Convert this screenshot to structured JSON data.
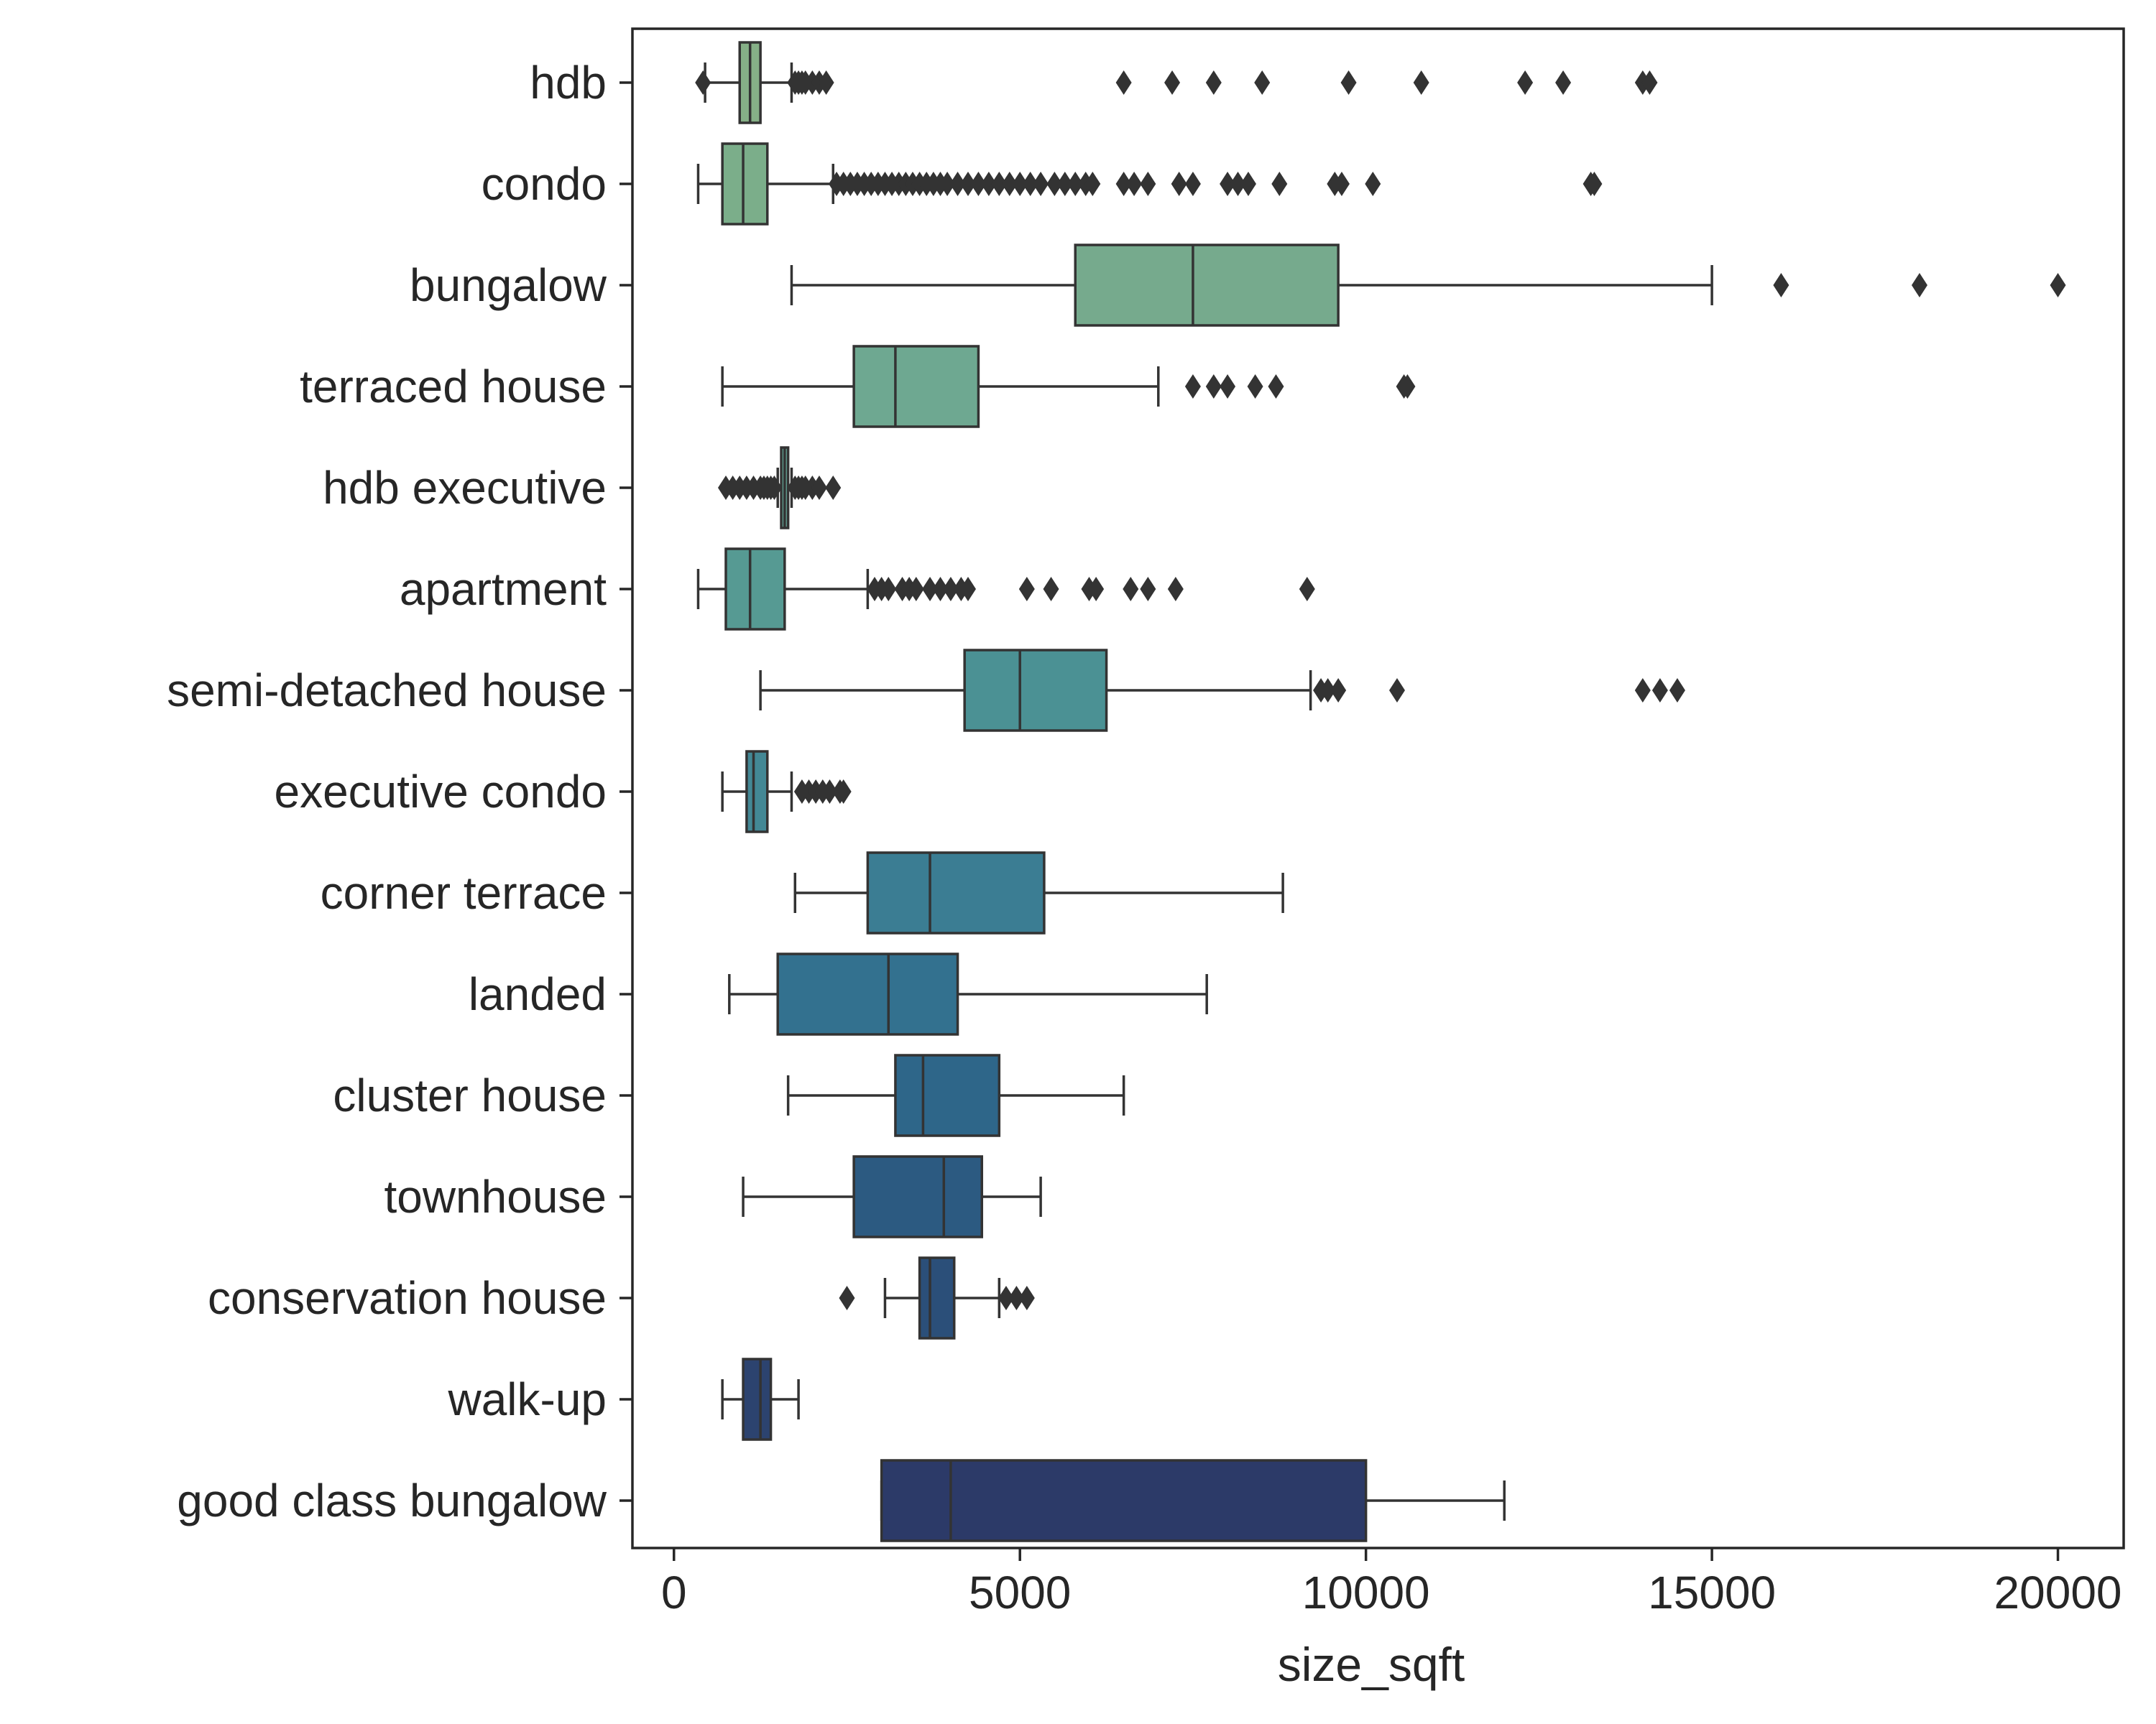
{
  "chart_data": {
    "type": "box",
    "orientation": "horizontal",
    "xlabel": "size_sqft",
    "ylabel": "",
    "xlim": [
      -600,
      20950
    ],
    "xticks": [
      0,
      5000,
      10000,
      15000,
      20000
    ],
    "xtick_labels": [
      "0",
      "5000",
      "10000",
      "15000",
      "20000"
    ],
    "grid": false,
    "legend": "none",
    "categories": [
      {
        "name": "hdb",
        "color": "#86b087",
        "whisker_low": 450,
        "q1": 950,
        "median": 1100,
        "q3": 1250,
        "whisker_high": 1700,
        "outliers": [
          420,
          1750,
          1800,
          1850,
          1900,
          2000,
          2100,
          2200,
          6500,
          7200,
          7800,
          8500,
          9750,
          10800,
          12300,
          12850,
          14000,
          14100
        ]
      },
      {
        "name": "condo",
        "color": "#7bae8a",
        "whisker_low": 350,
        "q1": 700,
        "median": 1000,
        "q3": 1350,
        "whisker_high": 2300,
        "outliers": [
          2350,
          2450,
          2550,
          2650,
          2750,
          2850,
          2950,
          3050,
          3150,
          3250,
          3350,
          3450,
          3550,
          3650,
          3750,
          3850,
          3950,
          4100,
          4250,
          4400,
          4550,
          4700,
          4850,
          5000,
          5150,
          5300,
          5500,
          5650,
          5800,
          5950,
          6050,
          6500,
          6650,
          6850,
          7300,
          7500,
          8000,
          8150,
          8300,
          8750,
          9550,
          9650,
          10100,
          13250,
          13300
        ]
      },
      {
        "name": "bungalow",
        "color": "#76aa8d",
        "whisker_low": 1700,
        "q1": 5800,
        "median": 7500,
        "q3": 9600,
        "whisker_high": 15000,
        "outliers": [
          16000,
          18000,
          20000
        ]
      },
      {
        "name": "terraced house",
        "color": "#6ea891",
        "whisker_low": 700,
        "q1": 2600,
        "median": 3200,
        "q3": 4400,
        "whisker_high": 7000,
        "outliers": [
          7500,
          7800,
          8000,
          8400,
          8700,
          10550,
          10600
        ]
      },
      {
        "name": "hdb executive",
        "color": "#62a092",
        "whisker_low": 1500,
        "q1": 1550,
        "median": 1600,
        "q3": 1650,
        "whisker_high": 1700,
        "outliers": [
          750,
          850,
          950,
          1050,
          1150,
          1250,
          1300,
          1350,
          1400,
          1450,
          1750,
          1800,
          1850,
          1900,
          2000,
          2100,
          2300
        ]
      },
      {
        "name": "apartment",
        "color": "#569a93",
        "whisker_low": 350,
        "q1": 750,
        "median": 1100,
        "q3": 1600,
        "whisker_high": 2800,
        "outliers": [
          2900,
          3000,
          3100,
          3300,
          3400,
          3500,
          3700,
          3850,
          4000,
          4150,
          4250,
          5100,
          5450,
          6000,
          6100,
          6600,
          6850,
          7250,
          9150
        ]
      },
      {
        "name": "semi-detached house",
        "color": "#4b9194",
        "whisker_low": 1250,
        "q1": 4200,
        "median": 5000,
        "q3": 6250,
        "whisker_high": 9200,
        "outliers": [
          9350,
          9450,
          9600,
          10450,
          14000,
          14250,
          14500
        ]
      },
      {
        "name": "executive condo",
        "color": "#438895",
        "whisker_low": 700,
        "q1": 1050,
        "median": 1150,
        "q3": 1350,
        "whisker_high": 1700,
        "outliers": [
          1850,
          1950,
          2050,
          2150,
          2250,
          2400,
          2450
        ]
      },
      {
        "name": "corner terrace",
        "color": "#3b7d93",
        "whisker_low": 1750,
        "q1": 2800,
        "median": 3700,
        "q3": 5350,
        "whisker_high": 8800,
        "outliers": []
      },
      {
        "name": "landed",
        "color": "#33718f",
        "whisker_low": 800,
        "q1": 1500,
        "median": 3100,
        "q3": 4100,
        "whisker_high": 7700,
        "outliers": []
      },
      {
        "name": "cluster house",
        "color": "#2e6689",
        "whisker_low": 1650,
        "q1": 3200,
        "median": 3600,
        "q3": 4700,
        "whisker_high": 6500,
        "outliers": []
      },
      {
        "name": "townhouse",
        "color": "#2c5a81",
        "whisker_low": 1000,
        "q1": 2600,
        "median": 3900,
        "q3": 4450,
        "whisker_high": 5300,
        "outliers": []
      },
      {
        "name": "conservation house",
        "color": "#2b4f79",
        "whisker_low": 3050,
        "q1": 3550,
        "median": 3700,
        "q3": 4050,
        "whisker_high": 4700,
        "outliers": [
          2500,
          4800,
          4950,
          5100
        ]
      },
      {
        "name": "walk-up",
        "color": "#2c436f",
        "whisker_low": 700,
        "q1": 1000,
        "median": 1250,
        "q3": 1400,
        "whisker_high": 1800,
        "outliers": []
      },
      {
        "name": "good class bungalow",
        "color": "#2c3a68",
        "whisker_low": 3000,
        "q1": 3000,
        "median": 4000,
        "q3": 10000,
        "whisker_high": 12000,
        "outliers": []
      }
    ]
  }
}
